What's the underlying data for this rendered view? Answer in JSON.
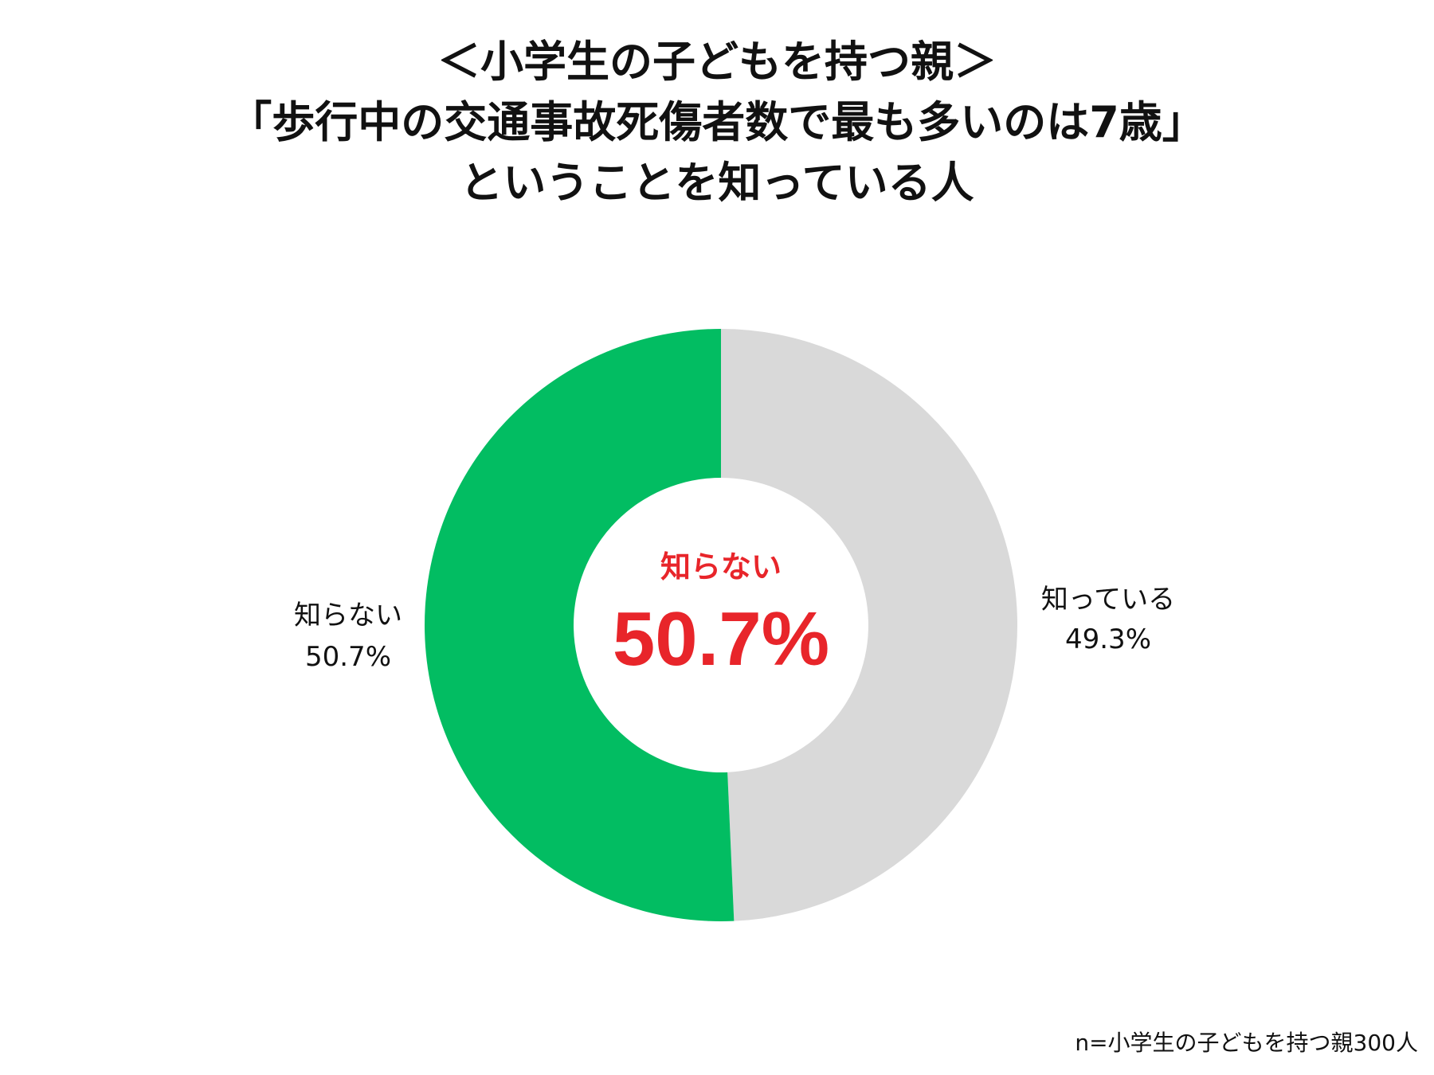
{
  "title_lines": [
    "＜小学生の子どもを持つ親＞",
    "「歩行中の交通事故死傷者数で最も多いのは7歳」",
    "ということを知っている人"
  ],
  "center": {
    "label": "知らない",
    "value": "50.7%",
    "color": "#e8252a"
  },
  "footnote": "n=小学生の子どもを持つ親300人",
  "chart_data": {
    "type": "pie",
    "donut": true,
    "start": "12 o'clock",
    "direction": "clockwise",
    "slices": [
      {
        "label": "知っている",
        "value": 49.3,
        "display": "49.3%",
        "color": "#d9d9d9",
        "label_position": "right"
      },
      {
        "label": "知らない",
        "value": 50.7,
        "display": "50.7%",
        "color": "#02bd62",
        "label_position": "left"
      }
    ],
    "legend": "none"
  }
}
